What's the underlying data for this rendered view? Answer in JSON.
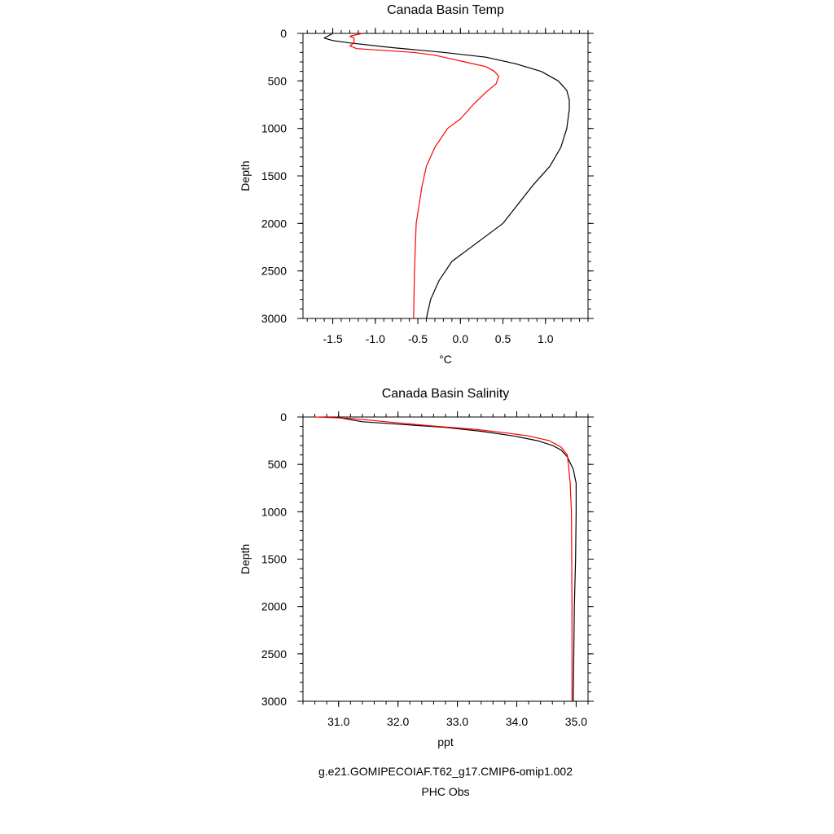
{
  "chart_data": [
    {
      "type": "line",
      "title": "Canada Basin Temp",
      "xlabel": "°C",
      "ylabel": "Depth",
      "xlim": [
        -1.85,
        1.5
      ],
      "ylim": [
        0,
        3000
      ],
      "y_inverted": true,
      "xticks": [
        -1.5,
        -1.0,
        -0.5,
        0.0,
        0.5,
        1.0
      ],
      "xtick_labels": [
        "-1.5",
        "-1.0",
        "-0.5",
        "0.0",
        "0.5",
        "1.0"
      ],
      "yticks": [
        0,
        500,
        1000,
        1500,
        2000,
        2500,
        3000
      ],
      "ytick_labels": [
        "0",
        "500",
        "1000",
        "1500",
        "2000",
        "2500",
        "3000"
      ],
      "series": [
        {
          "color": "#000000",
          "points": [
            [
              -1.5,
              0
            ],
            [
              -1.56,
              30
            ],
            [
              -1.6,
              50
            ],
            [
              -1.5,
              75
            ],
            [
              -1.3,
              100
            ],
            [
              -0.8,
              150
            ],
            [
              -0.2,
              200
            ],
            [
              0.3,
              250
            ],
            [
              0.65,
              320
            ],
            [
              0.95,
              400
            ],
            [
              1.15,
              500
            ],
            [
              1.25,
              600
            ],
            [
              1.28,
              700
            ],
            [
              1.28,
              800
            ],
            [
              1.25,
              1000
            ],
            [
              1.18,
              1200
            ],
            [
              1.05,
              1400
            ],
            [
              0.85,
              1600
            ],
            [
              0.5,
              2000
            ],
            [
              0.2,
              2200
            ],
            [
              -0.1,
              2400
            ],
            [
              -0.25,
              2600
            ],
            [
              -0.35,
              2800
            ],
            [
              -0.4,
              3000
            ]
          ]
        },
        {
          "color": "#ff0000",
          "points": [
            [
              -1.15,
              0
            ],
            [
              -1.3,
              30
            ],
            [
              -1.25,
              50
            ],
            [
              -1.25,
              100
            ],
            [
              -1.3,
              130
            ],
            [
              -1.22,
              160
            ],
            [
              -0.55,
              200
            ],
            [
              -0.3,
              230
            ],
            [
              -0.15,
              260
            ],
            [
              0.05,
              300
            ],
            [
              0.3,
              350
            ],
            [
              0.4,
              400
            ],
            [
              0.45,
              450
            ],
            [
              0.42,
              530
            ],
            [
              0.3,
              620
            ],
            [
              0.15,
              750
            ],
            [
              0.0,
              900
            ],
            [
              -0.15,
              1000
            ],
            [
              -0.3,
              1200
            ],
            [
              -0.4,
              1400
            ],
            [
              -0.45,
              1600
            ],
            [
              -0.52,
              2000
            ],
            [
              -0.54,
              2500
            ],
            [
              -0.55,
              3000
            ]
          ]
        }
      ]
    },
    {
      "type": "line",
      "title": "Canada Basin Salinity",
      "xlabel": "ppt",
      "ylabel": "Depth",
      "xlim": [
        30.4,
        35.2
      ],
      "ylim": [
        0,
        3000
      ],
      "y_inverted": true,
      "xticks": [
        31.0,
        32.0,
        33.0,
        34.0,
        35.0
      ],
      "xtick_labels": [
        "31.0",
        "32.0",
        "33.0",
        "34.0",
        "35.0"
      ],
      "yticks": [
        0,
        500,
        1000,
        1500,
        2000,
        2500,
        3000
      ],
      "ytick_labels": [
        "0",
        "500",
        "1000",
        "1500",
        "2000",
        "2500",
        "3000"
      ],
      "series": [
        {
          "color": "#000000",
          "points": [
            [
              30.95,
              0
            ],
            [
              31.4,
              50
            ],
            [
              32.1,
              80
            ],
            [
              32.8,
              110
            ],
            [
              33.4,
              150
            ],
            [
              33.95,
              200
            ],
            [
              34.35,
              250
            ],
            [
              34.6,
              300
            ],
            [
              34.75,
              350
            ],
            [
              34.85,
              420
            ],
            [
              34.95,
              550
            ],
            [
              35.0,
              700
            ],
            [
              35.0,
              1000
            ],
            [
              34.99,
              1500
            ],
            [
              34.97,
              2000
            ],
            [
              34.96,
              2500
            ],
            [
              34.95,
              3000
            ]
          ]
        },
        {
          "color": "#ff0000",
          "points": [
            [
              30.6,
              0
            ],
            [
              31.2,
              15
            ],
            [
              31.8,
              50
            ],
            [
              32.5,
              90
            ],
            [
              33.3,
              130
            ],
            [
              33.85,
              170
            ],
            [
              34.2,
              200
            ],
            [
              34.55,
              250
            ],
            [
              34.75,
              320
            ],
            [
              34.85,
              400
            ],
            [
              34.87,
              500
            ],
            [
              34.9,
              700
            ],
            [
              34.92,
              1000
            ],
            [
              34.93,
              2000
            ],
            [
              34.93,
              3000
            ]
          ]
        }
      ]
    }
  ],
  "captions": {
    "run_name": "g.e21.GOMIPECOIAF.T62_g17.CMIP6-omip1.002",
    "obs_name": "PHC Obs",
    "run_color": "#000000",
    "obs_color": "#ff0000"
  }
}
